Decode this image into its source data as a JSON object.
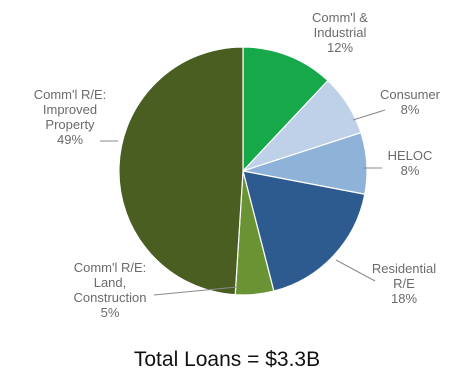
{
  "chart_data": {
    "type": "pie",
    "slices": [
      {
        "label": [
          "Comm'l &",
          "Industrial",
          "12%"
        ],
        "value": 12,
        "color": "#17a84a"
      },
      {
        "label": [
          "Consumer",
          "8%"
        ],
        "value": 8,
        "color": "#bed1e8"
      },
      {
        "label": [
          "HELOC",
          "8%"
        ],
        "value": 8,
        "color": "#8fb2d9"
      },
      {
        "label": [
          "Residential",
          "R/E",
          "18%"
        ],
        "value": 18,
        "color": "#2d5b8f"
      },
      {
        "label": [
          "Comm'l R/E:",
          "Land,",
          "Construction",
          "5%"
        ],
        "value": 5,
        "color": "#6a9433"
      },
      {
        "label": [
          "Comm'l R/E:",
          "Improved",
          "Property",
          "49%"
        ],
        "value": 49,
        "color": "#4a5e22"
      }
    ],
    "start": "12 o'clock, clockwise",
    "caption": "Total Loans = $3.3B"
  }
}
